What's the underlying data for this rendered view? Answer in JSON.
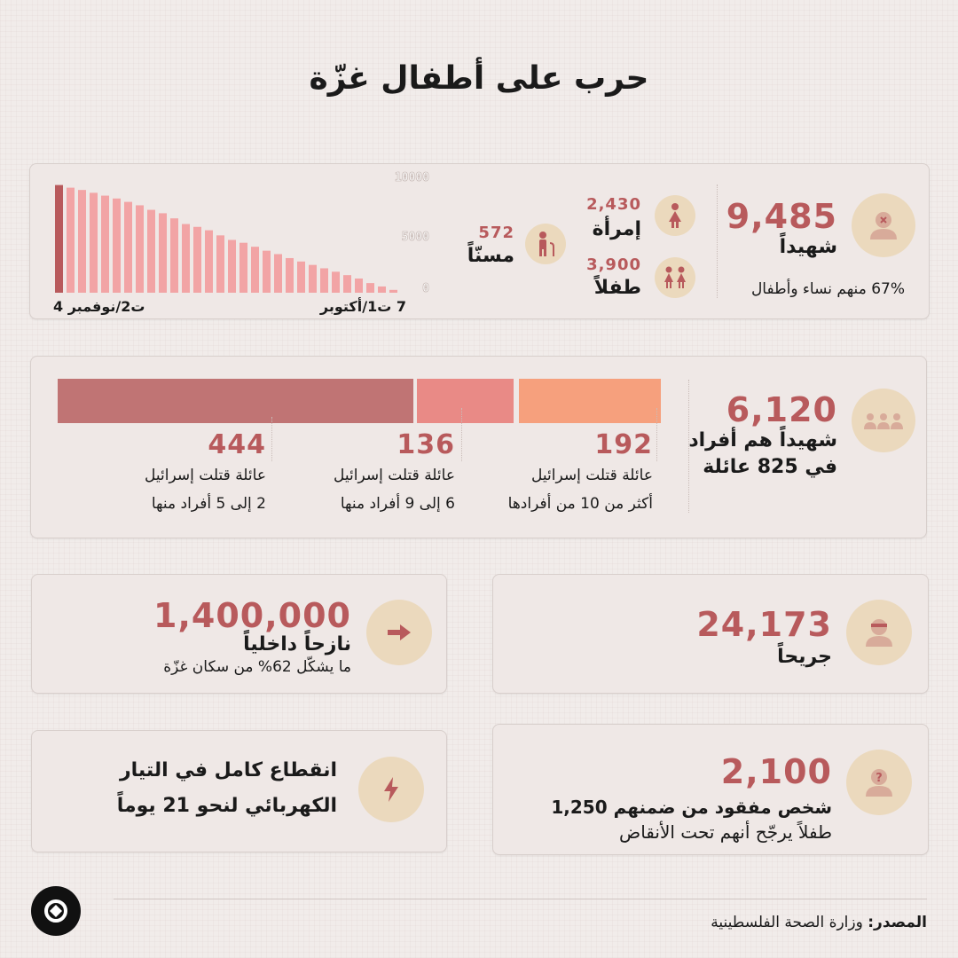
{
  "title": "حرب على أطفال غزّة",
  "colors": {
    "accent": "#b85a5c",
    "beige": "#ebd9bd",
    "bar": "#f2a4a5",
    "bar_dark": "#b85a5c",
    "seg1": "#c07474",
    "seg2": "#e98a86",
    "seg3": "#f6a07d"
  },
  "martyrs": {
    "value": "9,485",
    "label": "شهيداً",
    "note": "67% منهم نساء وأطفال",
    "women_value": "2,430",
    "women_label": "إمرأة",
    "children_value": "3,900",
    "children_label": "طفلاً",
    "elderly_value": "572",
    "elderly_label": "مسنّاً"
  },
  "chart_data": {
    "type": "bar",
    "title": "",
    "x_start_label": "7 ت1/أكتوبر",
    "x_end_label": "4 ت2/نوفمبر",
    "y_ticks": [
      "10000",
      "5000",
      "0"
    ],
    "ylim": [
      0,
      10000
    ],
    "values": [
      9485,
      9250,
      9050,
      8800,
      8550,
      8300,
      8000,
      7700,
      7300,
      7000,
      6550,
      6050,
      5800,
      5500,
      5050,
      4650,
      4400,
      4050,
      3700,
      3400,
      3050,
      2750,
      2450,
      2150,
      1850,
      1550,
      1250,
      850,
      550,
      250
    ]
  },
  "families": {
    "value": "6,120",
    "label_line1": "شهيداً هم أفراد",
    "label_line2": "في 825 عائلة",
    "groups": [
      {
        "count": "444",
        "line1": "عائلة قتلت إسرائيل",
        "line2": "2 إلى 5 أفراد منها",
        "share": 444
      },
      {
        "count": "136",
        "line1": "عائلة قتلت إسرائيل",
        "line2": "6 إلى 9 أفراد منها",
        "share": 136
      },
      {
        "count": "192",
        "line1": "عائلة قتلت إسرائيل",
        "line2": "أكثر من 10 من أفرادها",
        "share": 192
      }
    ]
  },
  "displaced": {
    "value": "1,400,000",
    "label": "نازحاً داخلياً",
    "note": "ما يشكّل 62% من سكان غزّة"
  },
  "wounded": {
    "value": "24,173",
    "label": "جريحاً"
  },
  "electricity": {
    "line1": "انقطاع كامل في التيار",
    "line2": "الكهربائي لنحو 21 يوماً"
  },
  "missing": {
    "value": "2,100",
    "line1": "شخص مفقود من ضمنهم 1,250",
    "line2": "طفلاً يرجّح أنهم تحت الأنقاض"
  },
  "source": {
    "label": "المصدر:",
    "text": "وزارة الصحة الفلسطينية"
  }
}
